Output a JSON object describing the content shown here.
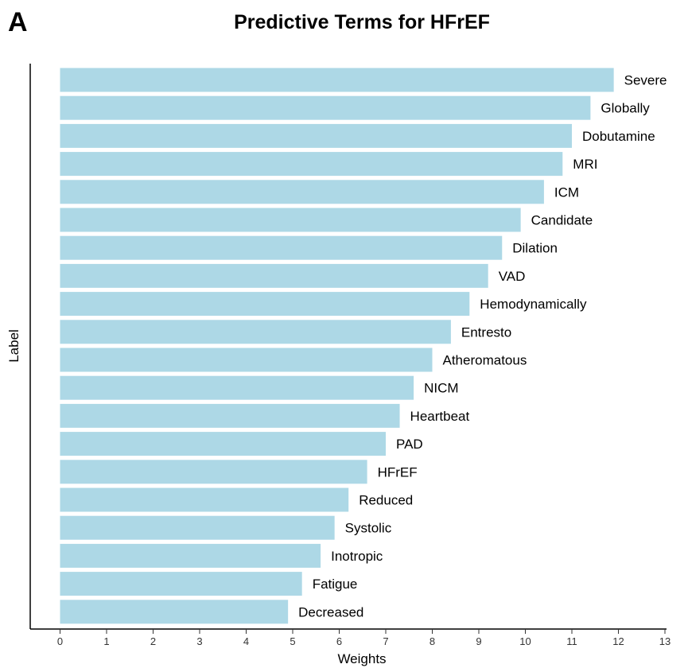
{
  "panel_letter": "A",
  "colors": {
    "bar": "#add8e6",
    "axis": "#000000",
    "background": "#ffffff"
  },
  "chart_data": {
    "type": "bar",
    "orientation": "horizontal",
    "title": "Predictive Terms for HFrEF",
    "xlabel": "Weights",
    "ylabel": "Label",
    "xlim": [
      0,
      13
    ],
    "xticks": [
      0,
      1,
      2,
      3,
      4,
      5,
      6,
      7,
      8,
      9,
      10,
      11,
      12,
      13
    ],
    "grid": false,
    "legend": "none",
    "categories": [
      "Severe",
      "Globally",
      "Dobutamine",
      "MRI",
      "ICM",
      "Candidate",
      "Dilation",
      "VAD",
      "Hemodynamically",
      "Entresto",
      "Atheromatous",
      "NICM",
      "Heartbeat",
      "PAD",
      "HFrEF",
      "Reduced",
      "Systolic",
      "Inotropic",
      "Fatigue",
      "Decreased"
    ],
    "values": [
      11.9,
      11.4,
      11.0,
      10.8,
      10.4,
      9.9,
      9.5,
      9.2,
      8.8,
      8.4,
      8.0,
      7.6,
      7.3,
      7.0,
      6.6,
      6.2,
      5.9,
      5.6,
      5.2,
      4.9
    ]
  }
}
